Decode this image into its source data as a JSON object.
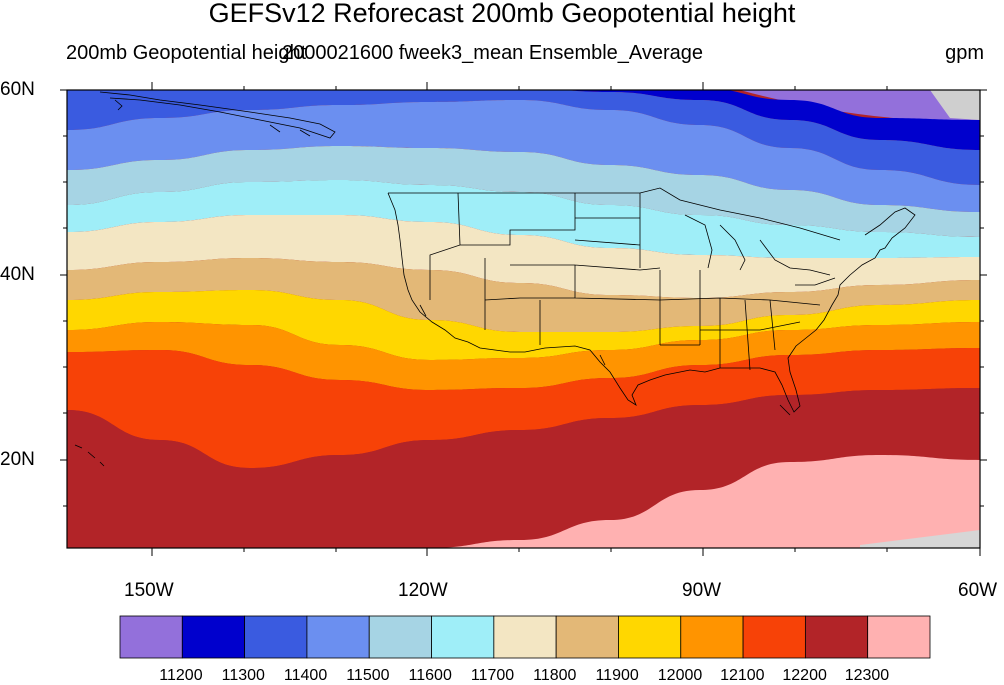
{
  "title": "GEFSv12 Reforecast 200mb Geopotential height",
  "subtitle_left": "200mb Geopotential height",
  "subtitle_center": "2000021600 fweek3_mean Ensemble_Average",
  "units": "gpm",
  "lat_labels": [
    "60N",
    "40N",
    "20N"
  ],
  "lon_labels": [
    "150W",
    "120W",
    "90W",
    "60W"
  ],
  "colorbar": {
    "levels": [
      "11200",
      "11300",
      "11400",
      "11500",
      "11600",
      "11700",
      "11800",
      "11900",
      "12000",
      "12100",
      "12200",
      "12300"
    ],
    "colors": [
      "#9370db",
      "#0000cd",
      "#3a5be0",
      "#6b8ff0",
      "#a6d4e4",
      "#9feef8",
      "#f3e6c3",
      "#e3b877",
      "#ffd700",
      "#ff9400",
      "#f74207",
      "#b22428",
      "#ffb1b1"
    ]
  }
}
